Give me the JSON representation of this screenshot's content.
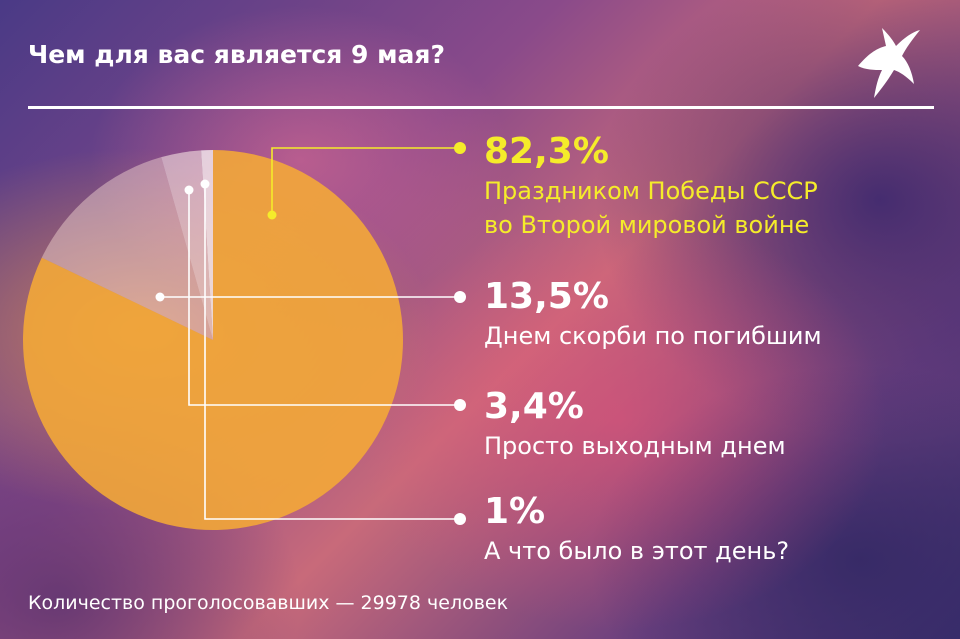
{
  "title": "Чем для вас является 9 мая?",
  "footer": "Количество проголосовавших — 29978 человек",
  "colors": {
    "highlight": "#f5ec2a",
    "text": "#ffffff",
    "slice_main": "#f2a73a"
  },
  "logo_icon": "bird-icon",
  "chart_data": {
    "type": "pie",
    "unit": "%",
    "slices": [
      {
        "value": 82.3,
        "value_label": "82,3%",
        "label_lines": [
          "Праздником Победы СССР",
          "во Второй мировой войне"
        ],
        "highlight": true
      },
      {
        "value": 13.5,
        "value_label": "13,5%",
        "label_lines": [
          "Днем скорби по погибшим"
        ],
        "highlight": false
      },
      {
        "value": 3.4,
        "value_label": "3,4%",
        "label_lines": [
          "Просто выходным днем"
        ],
        "highlight": false
      },
      {
        "value": 1,
        "value_label": "1%",
        "label_lines": [
          "А что было в этот день?"
        ],
        "highlight": false
      }
    ]
  }
}
